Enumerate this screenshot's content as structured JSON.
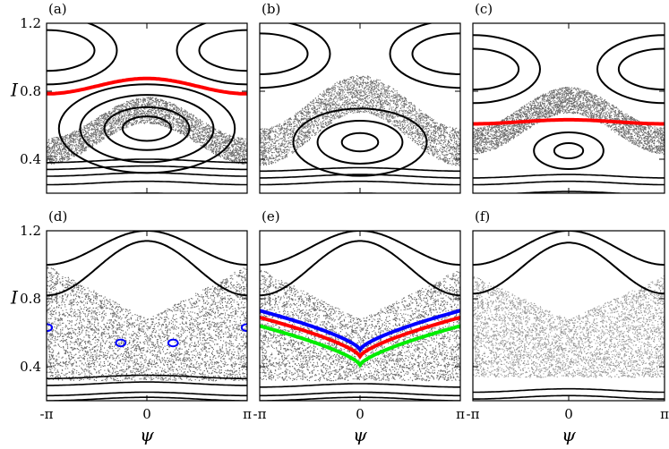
{
  "chart_data": {
    "type": "scatter",
    "description_kind": "Poincare sections, 2x3 panel grid",
    "xlabel": "ψ",
    "ylabel": "I",
    "xlim": [
      -3.14159,
      3.14159
    ],
    "ylim": [
      0.2,
      1.2
    ],
    "x_ticks": [
      {
        "value": -3.14159,
        "label": "-π"
      },
      {
        "value": 0,
        "label": "0"
      },
      {
        "value": 3.14159,
        "label": "π"
      }
    ],
    "y_ticks": [
      {
        "value": 0.4,
        "label": "0.4"
      },
      {
        "value": 0.8,
        "label": "0.8"
      },
      {
        "value": 1.2,
        "label": "1.2"
      }
    ],
    "colors": {
      "regular_orbit": "#000000",
      "chaos": "#6b6b6b",
      "red_curve": "#ff0000",
      "blue_curve": "#0000ff",
      "green_curve": "#00ee00"
    },
    "panels": [
      {
        "label": "(a)",
        "chaotic_band": {
          "center": [
            0,
            0.57
          ],
          "extent_x": 3.14,
          "extent_y": 0.14
        },
        "island_levels": [
          0.08,
          0.14,
          0.22,
          0.29
        ],
        "island_center": [
          0,
          0.58
        ],
        "upper_island_center_x": [
          -3.14,
          3.14
        ],
        "upper_island_center_y": 1.04,
        "red_curve": {
          "mean": 0.83,
          "amp": 0.045
        },
        "lower_curves": [
          0.19,
          0.26,
          0.31,
          0.35,
          0.39
        ]
      },
      {
        "label": "(b)",
        "chaotic_band": {
          "center": [
            0,
            0.63
          ],
          "extent_x": 3.14,
          "extent_y": 0.2
        },
        "island_levels": [
          0.06,
          0.14,
          0.22
        ],
        "island_center": [
          0,
          0.5
        ],
        "upper_island_center_x": [
          -3.14,
          3.14
        ],
        "upper_island_center_y": 1.02,
        "lower_curves": [
          0.19,
          0.26,
          0.3,
          0.34
        ]
      },
      {
        "label": "(c)",
        "chaotic_band": {
          "center": [
            0,
            0.63
          ],
          "extent_x": 3.14,
          "extent_y": 0.14
        },
        "island_levels": [
          0.05,
          0.12
        ],
        "island_center": [
          0,
          0.45
        ],
        "upper_island_center_x": [
          -3.14,
          3.14
        ],
        "upper_island_center_y": 0.93,
        "red_curve": {
          "mean": 0.62,
          "amp": 0.012
        },
        "lower_curves": [
          0.2,
          0.26,
          0.3
        ]
      },
      {
        "label": "(d)",
        "chaotic_region": {
          "top_edge": 1.0,
          "notch": 0.68,
          "bottom": 0.32
        },
        "upper_curves": [
          {
            "mean": 1.1,
            "amp": 0.1
          },
          {
            "mean": 0.98,
            "amp": 0.16
          }
        ],
        "blue_islands": [
          [
            -3.12,
            0.63
          ],
          [
            -0.82,
            0.54
          ],
          [
            0.82,
            0.54
          ],
          [
            3.12,
            0.63
          ]
        ],
        "lower_curves": [
          0.21,
          0.24,
          0.3,
          0.34
        ]
      },
      {
        "label": "(e)",
        "chaotic_region": {
          "top_edge": 0.98,
          "notch": 0.68,
          "bottom": 0.32
        },
        "upper_curves": [
          {
            "mean": 1.1,
            "amp": 0.1
          },
          {
            "mean": 0.98,
            "amp": 0.16
          }
        ],
        "blue_curve": {
          "edge": 0.73,
          "center": 0.5
        },
        "red_curve": {
          "edge": 0.69,
          "center": 0.46
        },
        "green_curve": {
          "edge": 0.64,
          "center": 0.41
        },
        "lower_curves": [
          0.21,
          0.24,
          0.29
        ]
      },
      {
        "label": "(f)",
        "chaotic_region": {
          "top_edge": 0.94,
          "notch": 0.68,
          "bottom": 0.34
        },
        "upper_curves": [
          {
            "mean": 1.1,
            "amp": 0.1
          },
          {
            "mean": 0.98,
            "amp": 0.15
          }
        ],
        "lower_curves": [
          0.22,
          0.26
        ]
      }
    ]
  }
}
